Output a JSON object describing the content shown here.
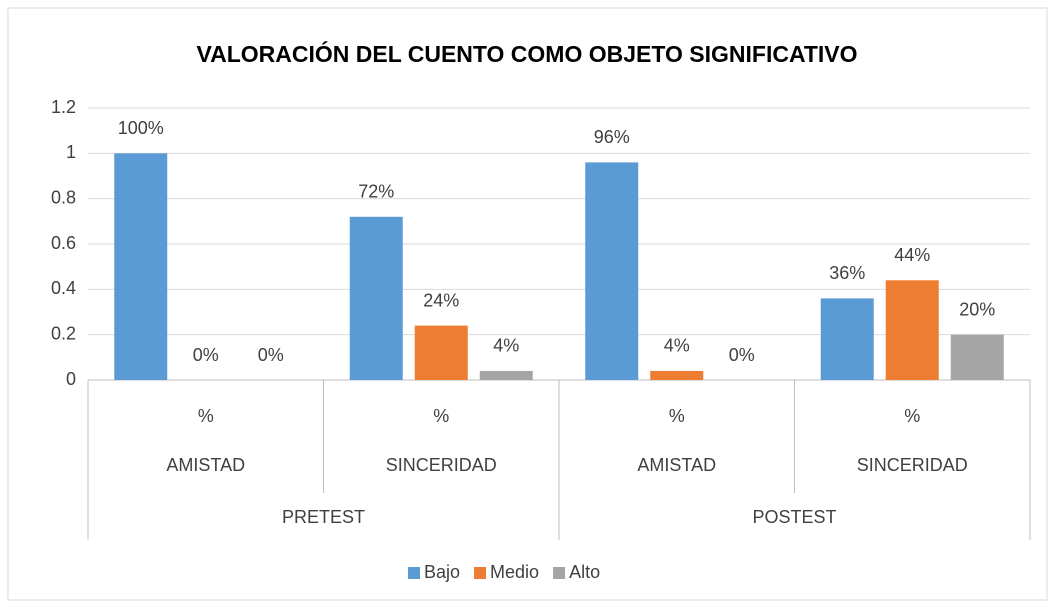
{
  "chart_data": {
    "type": "bar",
    "title": "VALORACIÓN DEL CUENTO COMO OBJETO SIGNIFICATIVO",
    "categories": [
      "%",
      "%",
      "%",
      "%"
    ],
    "subcategories": [
      "AMISTAD",
      "SINCERIDAD",
      "AMISTAD",
      "SINCERIDAD"
    ],
    "groups": [
      "PRETEST",
      "POSTEST"
    ],
    "series": [
      {
        "name": "Bajo",
        "color": "#5b9bd5",
        "values": [
          1,
          0.72,
          0.96,
          0.36
        ],
        "value_labels": [
          "100%",
          "72%",
          "96%",
          "36%"
        ]
      },
      {
        "name": "Medio",
        "color": "#ed7d31",
        "values": [
          0,
          0.24,
          0.04,
          0.44
        ],
        "value_labels": [
          "0%",
          "24%",
          "4%",
          "44%"
        ]
      },
      {
        "name": "Alto",
        "color": "#a5a5a5",
        "values": [
          0,
          0.04,
          0,
          0.2
        ],
        "value_labels": [
          "0%",
          "4%",
          "0%",
          "20%"
        ]
      }
    ],
    "ylim": [
      0,
      1.2
    ],
    "yticks": [
      0,
      0.2,
      0.4,
      0.6,
      0.8,
      1,
      1.2
    ],
    "grid": true,
    "legend": "bottom"
  }
}
